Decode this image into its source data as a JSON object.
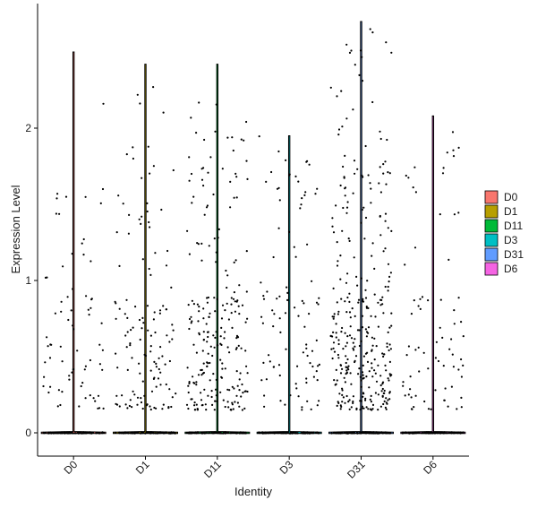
{
  "chart_data": {
    "type": "scatter",
    "subtype": "violin-jitter",
    "title": "",
    "xlabel": "Identity",
    "ylabel": "Expression Level",
    "ylim": [
      -0.15,
      2.8
    ],
    "yticks": [
      0,
      1,
      2
    ],
    "grid": false,
    "legend_position": "right",
    "categories": [
      "D0",
      "D1",
      "D11",
      "D3",
      "D31",
      "D6"
    ],
    "groups": [
      {
        "name": "D0",
        "color": "#F8766D",
        "violin_max": 2.5,
        "n_zero": 110,
        "n_nonzero": 72,
        "nz_max": 2.38
      },
      {
        "name": "D1",
        "color": "#B79F00",
        "violin_max": 2.42,
        "n_zero": 110,
        "n_nonzero": 130,
        "nz_max": 2.3
      },
      {
        "name": "D11",
        "color": "#00BA38",
        "violin_max": 2.42,
        "n_zero": 110,
        "n_nonzero": 230,
        "nz_max": 2.2
      },
      {
        "name": "D3",
        "color": "#00BFC4",
        "violin_max": 1.95,
        "n_zero": 110,
        "n_nonzero": 95,
        "nz_max": 1.95
      },
      {
        "name": "D31",
        "color": "#619CFF",
        "violin_max": 2.7,
        "n_zero": 110,
        "n_nonzero": 330,
        "nz_max": 2.7
      },
      {
        "name": "D6",
        "color": "#F564E3",
        "violin_max": 2.08,
        "n_zero": 110,
        "n_nonzero": 75,
        "nz_max": 2.05
      }
    ]
  }
}
